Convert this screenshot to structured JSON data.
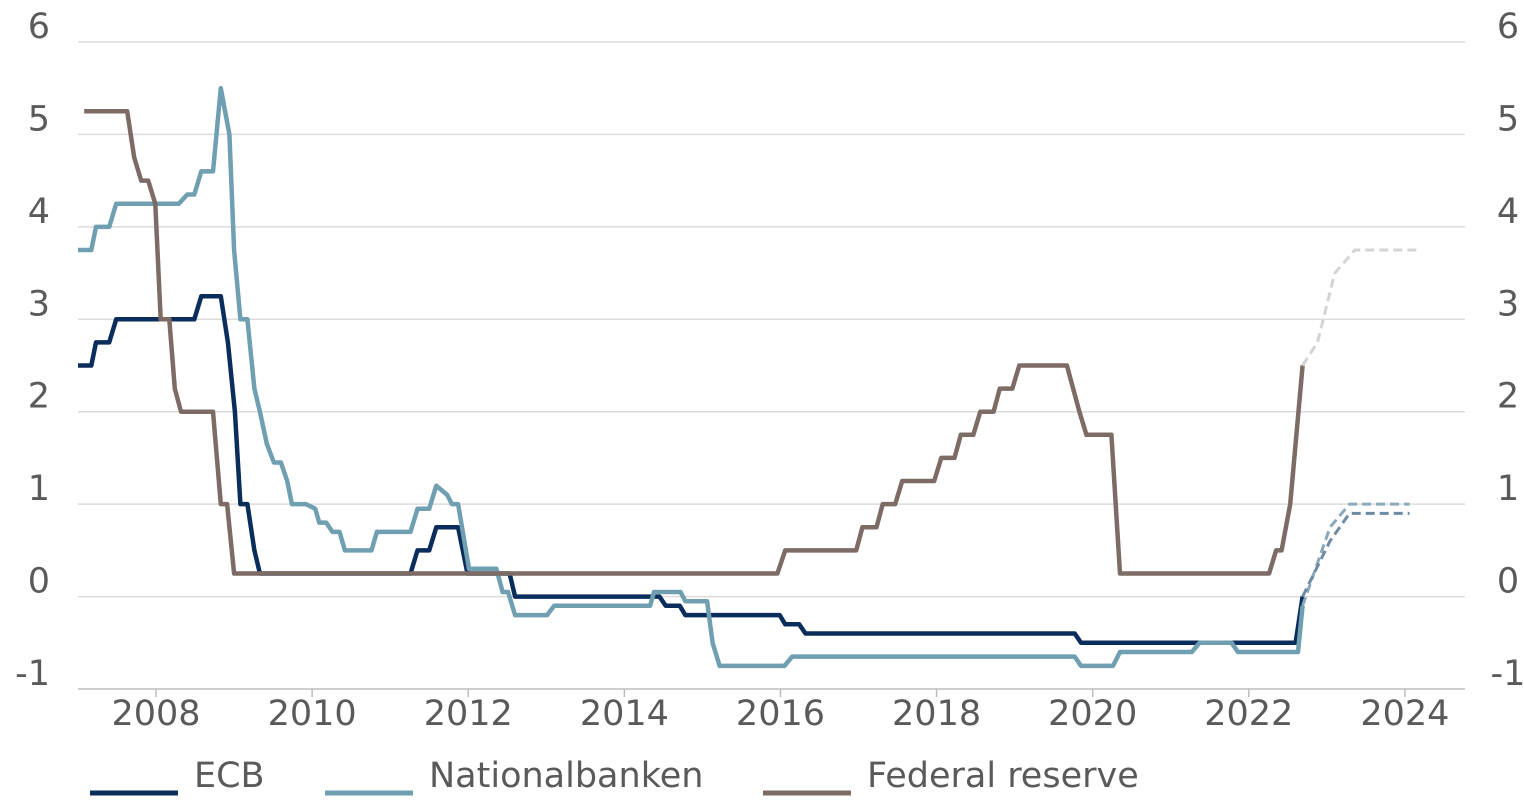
{
  "chart_data": {
    "type": "line",
    "xlim": [
      2007,
      2024.77
    ],
    "xticks": [
      2008,
      2010,
      2012,
      2014,
      2016,
      2018,
      2020,
      2022,
      2024
    ],
    "ylim": [
      -1,
      6
    ],
    "yticks": [
      -1,
      0,
      1,
      2,
      3,
      4,
      5,
      6
    ],
    "grid": true,
    "legend": "bottom",
    "series": [
      {
        "name": "ECB",
        "color": "#0b2d5b",
        "x": [
          2007.0,
          2007.17,
          2007.23,
          2007.4,
          2007.49,
          2008.49,
          2008.58,
          2008.83,
          2008.92,
          2009.01,
          2009.08,
          2009.17,
          2009.26,
          2009.33,
          2011.26,
          2011.35,
          2011.5,
          2011.59,
          2011.87,
          2011.99,
          2012.53,
          2012.6,
          2014.45,
          2014.53,
          2014.71,
          2014.78,
          2015.99,
          2016.06,
          2016.24,
          2016.32,
          2019.77,
          2019.85,
          2022.6,
          2022.69
        ],
        "values": [
          2.5,
          2.5,
          2.75,
          2.75,
          3.0,
          3.0,
          3.25,
          3.25,
          2.75,
          2.0,
          1.0,
          1.0,
          0.5,
          0.25,
          0.25,
          0.5,
          0.5,
          0.75,
          0.75,
          0.25,
          0.25,
          0.0,
          0.0,
          -0.1,
          -0.1,
          -0.2,
          -0.2,
          -0.3,
          -0.3,
          -0.4,
          -0.4,
          -0.5,
          -0.5,
          0.0
        ]
      },
      {
        "name": "Nationalbanken",
        "color": "#6f9fb0",
        "x": [
          2007.0,
          2007.17,
          2007.23,
          2007.4,
          2007.49,
          2008.29,
          2008.4,
          2008.49,
          2008.58,
          2008.73,
          2008.83,
          2008.94,
          2009.0,
          2009.08,
          2009.17,
          2009.26,
          2009.33,
          2009.42,
          2009.51,
          2009.6,
          2009.68,
          2009.74,
          2009.92,
          2010.04,
          2010.09,
          2010.18,
          2010.26,
          2010.35,
          2010.42,
          2010.76,
          2010.83,
          2011.26,
          2011.35,
          2011.5,
          2011.59,
          2011.73,
          2011.79,
          2011.87,
          2012.01,
          2012.36,
          2012.44,
          2012.51,
          2012.6,
          2013.01,
          2013.1,
          2014.33,
          2014.38,
          2014.72,
          2014.78,
          2015.06,
          2015.13,
          2015.22,
          2016.05,
          2016.15,
          2019.77,
          2019.85,
          2020.26,
          2020.35,
          2021.27,
          2021.37,
          2021.78,
          2021.86,
          2022.63,
          2022.69
        ],
        "values": [
          3.75,
          3.75,
          4.0,
          4.0,
          4.25,
          4.25,
          4.35,
          4.35,
          4.6,
          4.6,
          5.5,
          5.0,
          3.75,
          3.0,
          3.0,
          2.25,
          2.0,
          1.65,
          1.45,
          1.45,
          1.25,
          1.0,
          1.0,
          0.95,
          0.8,
          0.8,
          0.7,
          0.7,
          0.5,
          0.5,
          0.7,
          0.7,
          0.95,
          0.95,
          1.2,
          1.1,
          1.0,
          1.0,
          0.3,
          0.3,
          0.05,
          0.05,
          -0.2,
          -0.2,
          -0.1,
          -0.1,
          0.05,
          0.05,
          -0.05,
          -0.05,
          -0.5,
          -0.75,
          -0.75,
          -0.65,
          -0.65,
          -0.75,
          -0.75,
          -0.6,
          -0.6,
          -0.5,
          -0.5,
          -0.6,
          -0.6,
          -0.1
        ]
      },
      {
        "name": "Federal reserve",
        "color": "#7d6c66",
        "x": [
          2007.08,
          2007.63,
          2007.72,
          2007.81,
          2007.9,
          2007.99,
          2008.06,
          2008.17,
          2008.24,
          2008.32,
          2008.73,
          2008.83,
          2008.91,
          2009.0,
          2015.96,
          2016.06,
          2016.97,
          2017.05,
          2017.23,
          2017.31,
          2017.47,
          2017.56,
          2017.97,
          2018.06,
          2018.23,
          2018.31,
          2018.47,
          2018.56,
          2018.73,
          2018.81,
          2018.97,
          2019.06,
          2019.67,
          2019.83,
          2019.92,
          2020.24,
          2020.35,
          2022.26,
          2022.35,
          2022.42,
          2022.53,
          2022.69
        ],
        "values": [
          5.25,
          5.25,
          4.75,
          4.5,
          4.5,
          4.25,
          3.0,
          3.0,
          2.25,
          2.0,
          2.0,
          1.0,
          1.0,
          0.25,
          0.25,
          0.5,
          0.5,
          0.75,
          0.75,
          1.0,
          1.0,
          1.25,
          1.25,
          1.5,
          1.5,
          1.75,
          1.75,
          2.0,
          2.0,
          2.25,
          2.25,
          2.5,
          2.5,
          2.0,
          1.75,
          1.75,
          0.25,
          0.25,
          0.5,
          0.5,
          1.0,
          2.5
        ]
      },
      {
        "color": "#d4d4d4",
        "dashed": true,
        "x": [
          2022.69,
          2022.88,
          2023.1,
          2023.36,
          2024.15
        ],
        "values": [
          2.5,
          2.75,
          3.5,
          3.75,
          3.75
        ]
      },
      {
        "color": "#8aa9ba",
        "dashed": true,
        "x": [
          2022.69,
          2023.04,
          2023.29,
          2024.06
        ],
        "values": [
          -0.1,
          0.75,
          1.0,
          1.0
        ]
      },
      {
        "color": "#6f8aa3",
        "dashed": true,
        "x": [
          2022.69,
          2023.04,
          2023.29,
          2024.06
        ],
        "values": [
          0.0,
          0.6,
          0.9,
          0.9
        ]
      }
    ]
  }
}
